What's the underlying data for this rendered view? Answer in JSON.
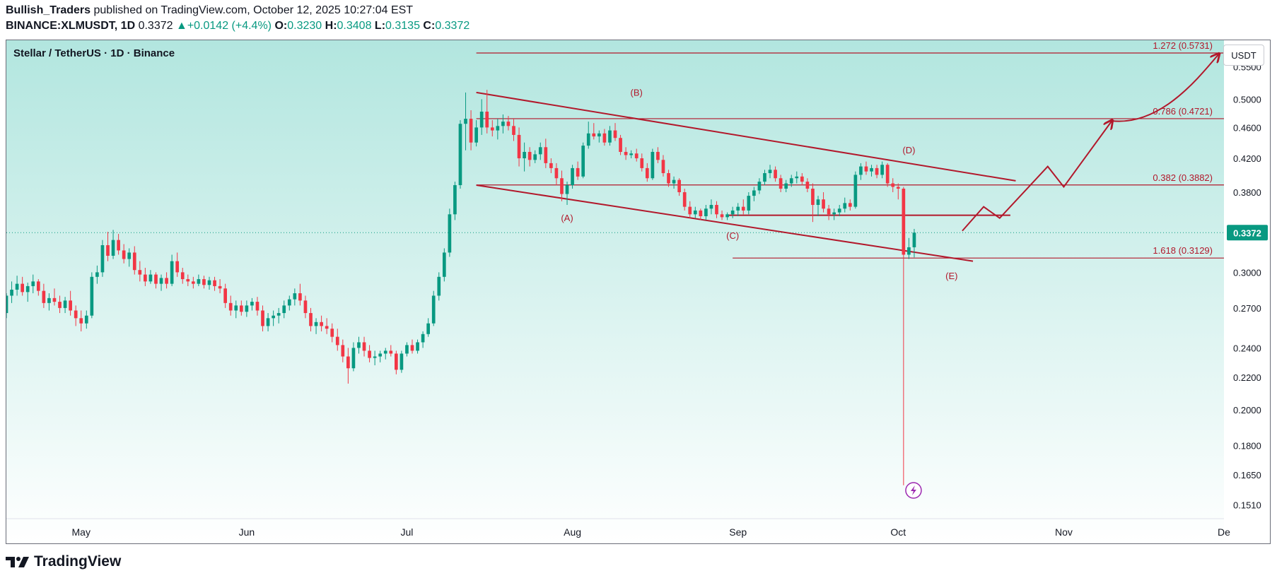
{
  "header": {
    "author": "Bullish_Traders",
    "published_text": "published on TradingView.com, October 12, 2025 10:27:04 EST",
    "symbol": "BINANCE:XLMUSDT, 1D",
    "last": "0.3372",
    "change": "+0.0142 (+4.4%)",
    "open_label": "O:",
    "open": "0.3230",
    "high_label": "H:",
    "high": "0.3408",
    "low_label": "L:",
    "low": "0.3135",
    "close_label": "C:",
    "close": "0.3372"
  },
  "pair_title": "Stellar / TetherUS · 1D · Binance",
  "currency_button": "USDT",
  "brand": "TradingView",
  "icons": {
    "logo": "tradingview-logo-icon",
    "up_arrow": "triangle-up-icon",
    "lightning": "lightning-icon"
  },
  "colors": {
    "up": "#089981",
    "down": "#f23645",
    "drawing": "#b2182b",
    "last_price_bg": "#089981",
    "lightning": "#9c27b0"
  },
  "chart_data": {
    "type": "candlestick",
    "scale": "log",
    "ylim": [
      0.145,
      0.595
    ],
    "xlim": [
      "2025-04-17",
      "2025-12-01"
    ],
    "grid": false,
    "x_ticks": [
      {
        "label": "May",
        "date": "2025-05-01"
      },
      {
        "label": "Jun",
        "date": "2025-06-01"
      },
      {
        "label": "Jul",
        "date": "2025-07-01"
      },
      {
        "label": "Aug",
        "date": "2025-08-01"
      },
      {
        "label": "Sep",
        "date": "2025-09-01"
      },
      {
        "label": "Oct",
        "date": "2025-10-01"
      },
      {
        "label": "Nov",
        "date": "2025-11-01"
      },
      {
        "label": "De",
        "date": "2025-12-01"
      }
    ],
    "y_ticks": [
      "0.5500",
      "0.5000",
      "0.4600",
      "0.4200",
      "0.3800",
      "0.3400",
      "0.3000",
      "0.2700",
      "0.2400",
      "0.2200",
      "0.2000",
      "0.1800",
      "0.1650",
      "0.1510"
    ],
    "last_price": "0.3372",
    "start_date": "2025-04-17",
    "candles": [
      [
        0.266,
        0.282,
        0.262,
        0.28
      ],
      [
        0.28,
        0.292,
        0.274,
        0.285
      ],
      [
        0.285,
        0.297,
        0.28,
        0.29
      ],
      [
        0.29,
        0.296,
        0.28,
        0.283
      ],
      [
        0.283,
        0.291,
        0.275,
        0.288
      ],
      [
        0.288,
        0.298,
        0.282,
        0.292
      ],
      [
        0.292,
        0.294,
        0.28,
        0.284
      ],
      [
        0.284,
        0.29,
        0.27,
        0.274
      ],
      [
        0.274,
        0.282,
        0.268,
        0.278
      ],
      [
        0.278,
        0.286,
        0.272,
        0.275
      ],
      [
        0.275,
        0.28,
        0.266,
        0.27
      ],
      [
        0.27,
        0.279,
        0.266,
        0.276
      ],
      [
        0.276,
        0.284,
        0.264,
        0.268
      ],
      [
        0.268,
        0.272,
        0.256,
        0.262
      ],
      [
        0.262,
        0.268,
        0.252,
        0.258
      ],
      [
        0.258,
        0.268,
        0.254,
        0.264
      ],
      [
        0.264,
        0.3,
        0.262,
        0.296
      ],
      [
        0.296,
        0.306,
        0.29,
        0.3
      ],
      [
        0.3,
        0.33,
        0.296,
        0.325
      ],
      [
        0.325,
        0.338,
        0.31,
        0.315
      ],
      [
        0.315,
        0.34,
        0.312,
        0.33
      ],
      [
        0.33,
        0.336,
        0.316,
        0.32
      ],
      [
        0.32,
        0.326,
        0.308,
        0.312
      ],
      [
        0.312,
        0.322,
        0.305,
        0.318
      ],
      [
        0.318,
        0.324,
        0.298,
        0.302
      ],
      [
        0.302,
        0.31,
        0.292,
        0.298
      ],
      [
        0.298,
        0.304,
        0.288,
        0.292
      ],
      [
        0.292,
        0.302,
        0.29,
        0.298
      ],
      [
        0.298,
        0.3,
        0.286,
        0.29
      ],
      [
        0.29,
        0.298,
        0.284,
        0.295
      ],
      [
        0.295,
        0.3,
        0.286,
        0.29
      ],
      [
        0.29,
        0.316,
        0.288,
        0.31
      ],
      [
        0.31,
        0.318,
        0.296,
        0.3
      ],
      [
        0.3,
        0.304,
        0.29,
        0.294
      ],
      [
        0.294,
        0.298,
        0.288,
        0.292
      ],
      [
        0.292,
        0.296,
        0.286,
        0.29
      ],
      [
        0.29,
        0.298,
        0.288,
        0.294
      ],
      [
        0.294,
        0.297,
        0.286,
        0.289
      ],
      [
        0.289,
        0.296,
        0.285,
        0.293
      ],
      [
        0.293,
        0.296,
        0.284,
        0.288
      ],
      [
        0.288,
        0.294,
        0.282,
        0.286
      ],
      [
        0.286,
        0.29,
        0.27,
        0.274
      ],
      [
        0.274,
        0.28,
        0.264,
        0.268
      ],
      [
        0.268,
        0.276,
        0.262,
        0.272
      ],
      [
        0.272,
        0.276,
        0.264,
        0.267
      ],
      [
        0.267,
        0.276,
        0.263,
        0.272
      ],
      [
        0.272,
        0.278,
        0.268,
        0.275
      ],
      [
        0.275,
        0.279,
        0.264,
        0.268
      ],
      [
        0.268,
        0.272,
        0.252,
        0.256
      ],
      [
        0.256,
        0.266,
        0.252,
        0.262
      ],
      [
        0.262,
        0.268,
        0.256,
        0.264
      ],
      [
        0.264,
        0.27,
        0.258,
        0.266
      ],
      [
        0.266,
        0.276,
        0.262,
        0.272
      ],
      [
        0.272,
        0.28,
        0.268,
        0.277
      ],
      [
        0.277,
        0.286,
        0.272,
        0.282
      ],
      [
        0.282,
        0.29,
        0.272,
        0.276
      ],
      [
        0.276,
        0.28,
        0.262,
        0.266
      ],
      [
        0.266,
        0.27,
        0.252,
        0.256
      ],
      [
        0.256,
        0.262,
        0.25,
        0.259
      ],
      [
        0.259,
        0.264,
        0.252,
        0.256
      ],
      [
        0.256,
        0.262,
        0.25,
        0.254
      ],
      [
        0.254,
        0.258,
        0.244,
        0.248
      ],
      [
        0.248,
        0.254,
        0.238,
        0.242
      ],
      [
        0.242,
        0.246,
        0.23,
        0.234
      ],
      [
        0.234,
        0.24,
        0.216,
        0.226
      ],
      [
        0.226,
        0.244,
        0.224,
        0.24
      ],
      [
        0.24,
        0.248,
        0.236,
        0.244
      ],
      [
        0.244,
        0.248,
        0.234,
        0.238
      ],
      [
        0.238,
        0.242,
        0.23,
        0.233
      ],
      [
        0.233,
        0.238,
        0.228,
        0.234
      ],
      [
        0.234,
        0.238,
        0.23,
        0.236
      ],
      [
        0.236,
        0.24,
        0.232,
        0.238
      ],
      [
        0.238,
        0.242,
        0.234,
        0.236
      ],
      [
        0.236,
        0.238,
        0.222,
        0.225
      ],
      [
        0.225,
        0.238,
        0.223,
        0.236
      ],
      [
        0.236,
        0.244,
        0.234,
        0.242
      ],
      [
        0.242,
        0.246,
        0.236,
        0.238
      ],
      [
        0.238,
        0.246,
        0.236,
        0.244
      ],
      [
        0.244,
        0.252,
        0.24,
        0.25
      ],
      [
        0.25,
        0.262,
        0.248,
        0.258
      ],
      [
        0.258,
        0.284,
        0.256,
        0.28
      ],
      [
        0.28,
        0.3,
        0.276,
        0.296
      ],
      [
        0.296,
        0.322,
        0.292,
        0.318
      ],
      [
        0.318,
        0.362,
        0.314,
        0.356
      ],
      [
        0.356,
        0.392,
        0.35,
        0.388
      ],
      [
        0.388,
        0.47,
        0.384,
        0.465
      ],
      [
        0.465,
        0.51,
        0.43,
        0.472
      ],
      [
        0.472,
        0.484,
        0.43,
        0.44
      ],
      [
        0.44,
        0.47,
        0.435,
        0.46
      ],
      [
        0.46,
        0.5,
        0.45,
        0.482
      ],
      [
        0.482,
        0.514,
        0.452,
        0.46
      ],
      [
        0.46,
        0.47,
        0.448,
        0.456
      ],
      [
        0.456,
        0.472,
        0.444,
        0.462
      ],
      [
        0.462,
        0.478,
        0.452,
        0.468
      ],
      [
        0.468,
        0.476,
        0.456,
        0.462
      ],
      [
        0.462,
        0.472,
        0.442,
        0.45
      ],
      [
        0.45,
        0.46,
        0.41,
        0.42
      ],
      [
        0.42,
        0.44,
        0.404,
        0.428
      ],
      [
        0.428,
        0.434,
        0.41,
        0.418
      ],
      [
        0.418,
        0.43,
        0.414,
        0.425
      ],
      [
        0.425,
        0.44,
        0.418,
        0.434
      ],
      [
        0.434,
        0.445,
        0.408,
        0.414
      ],
      [
        0.414,
        0.42,
        0.402,
        0.408
      ],
      [
        0.408,
        0.414,
        0.388,
        0.396
      ],
      [
        0.396,
        0.405,
        0.37,
        0.378
      ],
      [
        0.378,
        0.392,
        0.366,
        0.388
      ],
      [
        0.388,
        0.412,
        0.384,
        0.408
      ],
      [
        0.408,
        0.416,
        0.394,
        0.398
      ],
      [
        0.398,
        0.44,
        0.396,
        0.436
      ],
      [
        0.436,
        0.468,
        0.432,
        0.452
      ],
      [
        0.452,
        0.466,
        0.444,
        0.448
      ],
      [
        0.448,
        0.456,
        0.44,
        0.452
      ],
      [
        0.452,
        0.458,
        0.436,
        0.44
      ],
      [
        0.44,
        0.462,
        0.436,
        0.456
      ],
      [
        0.456,
        0.466,
        0.442,
        0.446
      ],
      [
        0.446,
        0.45,
        0.424,
        0.428
      ],
      [
        0.428,
        0.434,
        0.418,
        0.424
      ],
      [
        0.424,
        0.43,
        0.42,
        0.426
      ],
      [
        0.426,
        0.432,
        0.416,
        0.42
      ],
      [
        0.42,
        0.426,
        0.404,
        0.408
      ],
      [
        0.408,
        0.414,
        0.392,
        0.396
      ],
      [
        0.396,
        0.432,
        0.394,
        0.428
      ],
      [
        0.428,
        0.434,
        0.414,
        0.418
      ],
      [
        0.418,
        0.424,
        0.398,
        0.402
      ],
      [
        0.402,
        0.406,
        0.386,
        0.39
      ],
      [
        0.39,
        0.398,
        0.384,
        0.394
      ],
      [
        0.394,
        0.396,
        0.376,
        0.38
      ],
      [
        0.38,
        0.384,
        0.36,
        0.364
      ],
      [
        0.364,
        0.37,
        0.352,
        0.356
      ],
      [
        0.356,
        0.364,
        0.352,
        0.36
      ],
      [
        0.36,
        0.362,
        0.35,
        0.354
      ],
      [
        0.354,
        0.366,
        0.35,
        0.362
      ],
      [
        0.362,
        0.372,
        0.356,
        0.366
      ],
      [
        0.366,
        0.37,
        0.352,
        0.356
      ],
      [
        0.356,
        0.36,
        0.35,
        0.353
      ],
      [
        0.353,
        0.358,
        0.35,
        0.356
      ],
      [
        0.356,
        0.364,
        0.352,
        0.36
      ],
      [
        0.36,
        0.368,
        0.354,
        0.364
      ],
      [
        0.364,
        0.372,
        0.356,
        0.36
      ],
      [
        0.36,
        0.38,
        0.356,
        0.376
      ],
      [
        0.376,
        0.386,
        0.37,
        0.382
      ],
      [
        0.382,
        0.396,
        0.378,
        0.392
      ],
      [
        0.392,
        0.406,
        0.388,
        0.402
      ],
      [
        0.402,
        0.412,
        0.396,
        0.406
      ],
      [
        0.406,
        0.41,
        0.392,
        0.396
      ],
      [
        0.396,
        0.4,
        0.38,
        0.384
      ],
      [
        0.384,
        0.394,
        0.38,
        0.39
      ],
      [
        0.39,
        0.4,
        0.386,
        0.396
      ],
      [
        0.396,
        0.404,
        0.39,
        0.398
      ],
      [
        0.398,
        0.402,
        0.388,
        0.392
      ],
      [
        0.392,
        0.396,
        0.38,
        0.384
      ],
      [
        0.384,
        0.39,
        0.348,
        0.366
      ],
      [
        0.366,
        0.376,
        0.354,
        0.372
      ],
      [
        0.372,
        0.38,
        0.358,
        0.362
      ],
      [
        0.362,
        0.366,
        0.35,
        0.356
      ],
      [
        0.356,
        0.362,
        0.35,
        0.358
      ],
      [
        0.358,
        0.366,
        0.354,
        0.362
      ],
      [
        0.362,
        0.374,
        0.358,
        0.368
      ],
      [
        0.368,
        0.372,
        0.36,
        0.364
      ],
      [
        0.364,
        0.404,
        0.362,
        0.4
      ],
      [
        0.4,
        0.414,
        0.394,
        0.41
      ],
      [
        0.41,
        0.416,
        0.4,
        0.404
      ],
      [
        0.404,
        0.412,
        0.398,
        0.408
      ],
      [
        0.408,
        0.412,
        0.396,
        0.4
      ],
      [
        0.4,
        0.416,
        0.396,
        0.412
      ],
      [
        0.412,
        0.414,
        0.386,
        0.39
      ],
      [
        0.39,
        0.396,
        0.38,
        0.386
      ],
      [
        0.386,
        0.39,
        0.372,
        0.384
      ],
      [
        0.384,
        0.386,
        0.16,
        0.316
      ],
      [
        0.316,
        0.332,
        0.312,
        0.323
      ],
      [
        0.323,
        0.341,
        0.3135,
        0.3372
      ]
    ],
    "annotations": [
      {
        "label": "(A)",
        "date": "2025-07-31",
        "price": 0.349
      },
      {
        "label": "(B)",
        "date": "2025-08-13",
        "price": 0.505
      },
      {
        "label": "(C)",
        "date": "2025-08-31",
        "price": 0.331
      },
      {
        "label": "(D)",
        "date": "2025-10-03",
        "price": 0.426
      },
      {
        "label": "(E)",
        "date": "2025-10-11",
        "price": 0.294
      }
    ],
    "fib_levels": [
      {
        "label": "1.272 (0.5731)",
        "value": 0.5731,
        "from": "2025-07-14"
      },
      {
        "label": "0.786 (0.4721)",
        "value": 0.4721,
        "from": "2025-07-14"
      },
      {
        "label": "0.382 (0.3882)",
        "value": 0.3882,
        "from": "2025-07-14"
      },
      {
        "label": "1.618 (0.3129)",
        "value": 0.3129,
        "from": "2025-08-31"
      }
    ],
    "trendlines": [
      {
        "from": [
          "2025-07-14",
          0.51
        ],
        "to": [
          "2025-10-23",
          0.393
        ]
      },
      {
        "from": [
          "2025-07-14",
          0.388
        ],
        "to": [
          "2025-10-15",
          0.31
        ]
      },
      {
        "from": [
          "2025-08-30",
          0.355
        ],
        "to": [
          "2025-10-22",
          0.355
        ]
      }
    ],
    "projection": {
      "zigzag": [
        [
          "2025-10-13",
          0.339
        ],
        [
          "2025-10-17",
          0.364
        ],
        [
          "2025-10-20",
          0.352
        ],
        [
          "2025-10-29",
          0.41
        ],
        [
          "2025-11-01",
          0.386
        ],
        [
          "2025-11-10",
          0.469
        ]
      ],
      "curve": [
        [
          "2025-11-10",
          0.469
        ],
        [
          "2025-11-19",
          0.462
        ],
        [
          "2025-11-26",
          0.53
        ],
        [
          "2025-11-30",
          0.571
        ]
      ]
    }
  }
}
